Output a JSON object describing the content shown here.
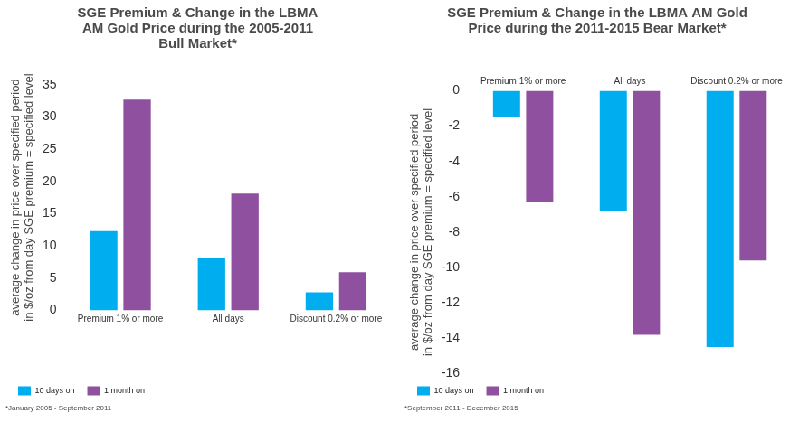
{
  "chart_data": [
    {
      "type": "bar",
      "title": [
        "SGE Premium & Change in the LBMA",
        "AM Gold Price during the 2005-2011",
        "Bull Market*"
      ],
      "y_label": [
        "average change in price over specified period",
        "in $/oz from day SGE premium = specified level"
      ],
      "categories": [
        "Premium 1% or more",
        "All days",
        "Discount 0.2% or more"
      ],
      "series": [
        {
          "name": "10 days on",
          "color": "#00aeef",
          "values": [
            12.3,
            8.2,
            2.8
          ]
        },
        {
          "name": "1 month on",
          "color": "#9050a0",
          "values": [
            32.7,
            18.1,
            5.9
          ]
        }
      ],
      "ylim": [
        0,
        35
      ],
      "yticks": [
        0,
        5,
        10,
        15,
        20,
        25,
        30,
        35
      ],
      "grid": false,
      "legend": "bottom-left",
      "annotations": [
        "*January 2005 - September 2011"
      ]
    },
    {
      "type": "bar",
      "title": [
        "SGE Premium & Change in the LBMA AM Gold",
        "Price during the 2011-2015 Bear Market*"
      ],
      "y_label": [
        "average change in price over specified period",
        "in $/oz from day SGE premium = specified level"
      ],
      "categories": [
        "Premium 1% or more",
        "All days",
        "Discount 0.2% or more"
      ],
      "series": [
        {
          "name": "10 days on",
          "color": "#00aeef",
          "values": [
            -1.5,
            -6.8,
            -14.5
          ]
        },
        {
          "name": "1 month on",
          "color": "#9050a0",
          "values": [
            -6.3,
            -13.8,
            -9.6
          ]
        }
      ],
      "ylim": [
        -16,
        0
      ],
      "yticks": [
        0,
        -2,
        -4,
        -6,
        -8,
        -10,
        -12,
        -14,
        -16
      ],
      "grid": false,
      "legend": "bottom-left",
      "annotations": [
        "*September 2011 - December 2015"
      ]
    }
  ]
}
